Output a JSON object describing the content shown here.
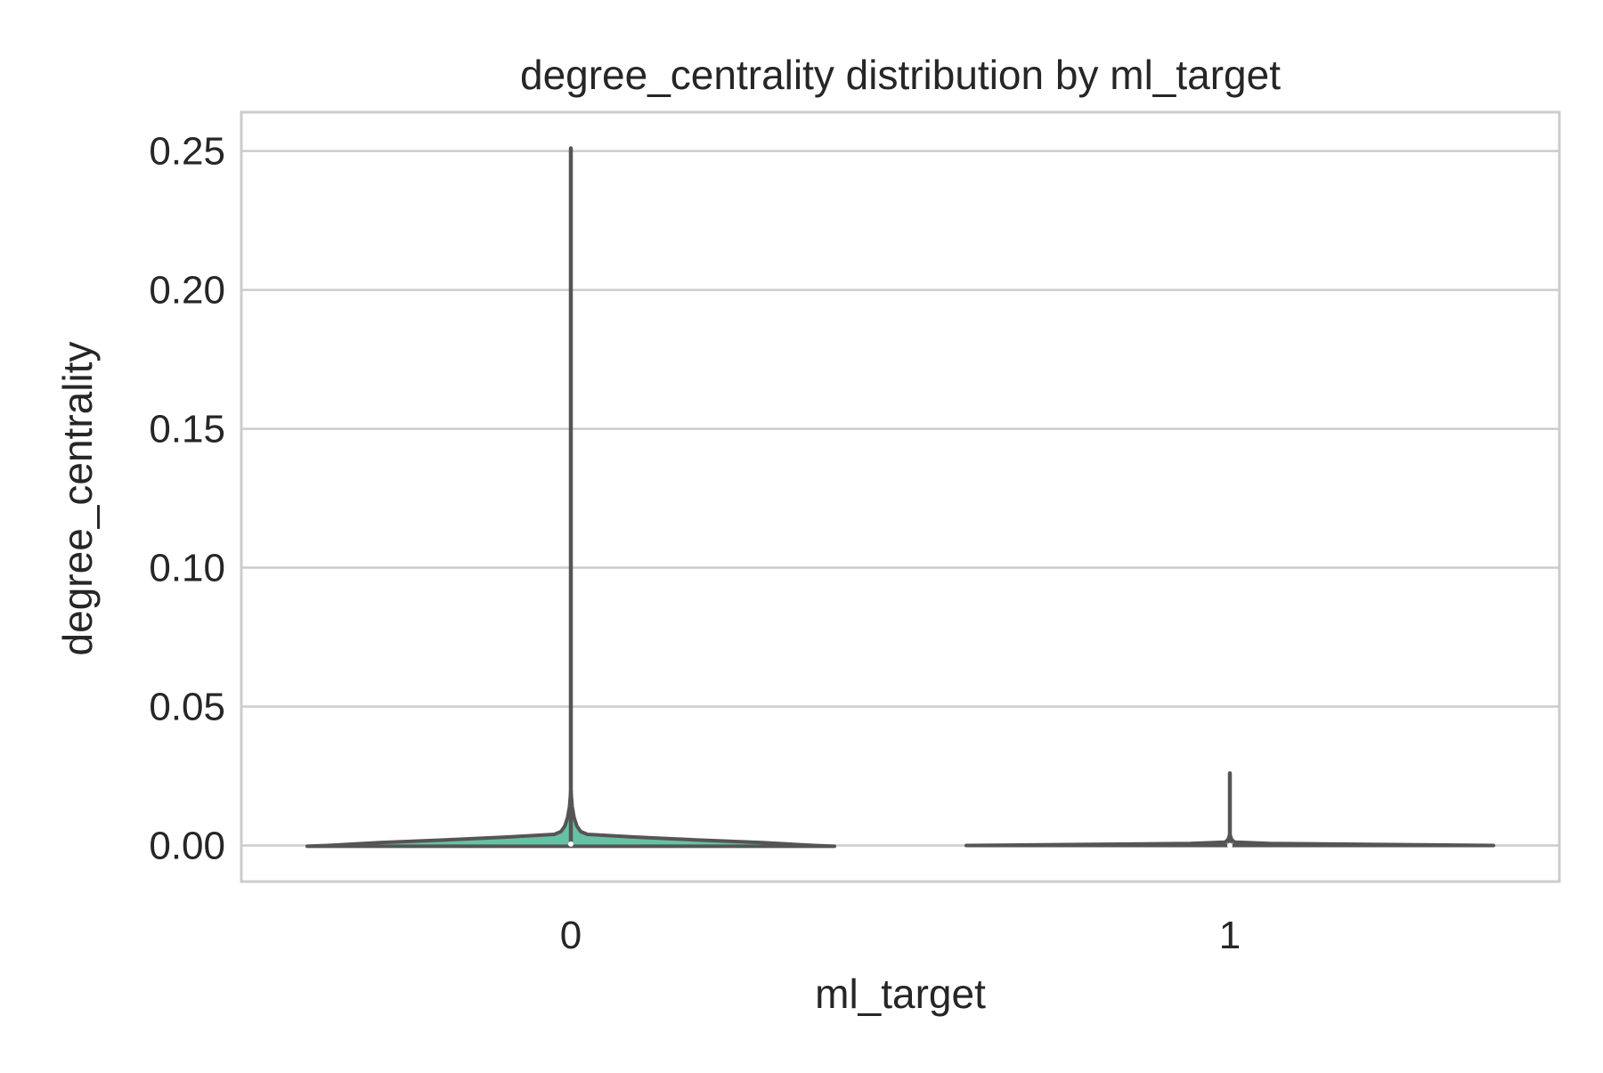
{
  "chart_data": {
    "type": "violin",
    "title": "degree_centrality distribution by ml_target",
    "xlabel": "ml_target",
    "ylabel": "degree_centrality",
    "categories": [
      "0",
      "1"
    ],
    "ylim": [
      -0.013,
      0.264
    ],
    "yticks": [
      0.0,
      0.05,
      0.1,
      0.15,
      0.2,
      0.25
    ],
    "ytick_labels": [
      "0.00",
      "0.05",
      "0.10",
      "0.15",
      "0.20",
      "0.25"
    ],
    "grid": "horizontal",
    "colors": {
      "violin_fill_0": "#66c2a5",
      "violin_fill_1": "#fc8d62",
      "outline": "#555555",
      "grid": "#cccccc",
      "frame": "#cccccc"
    },
    "series": [
      {
        "category": "0",
        "min": 0.0,
        "max": 0.251,
        "median": 0.0005,
        "profile": [
          {
            "y": -0.0003,
            "w": 0.8
          },
          {
            "y": 0.0,
            "w": 0.74
          },
          {
            "y": 0.001,
            "w": 0.58
          },
          {
            "y": 0.002,
            "w": 0.38
          },
          {
            "y": 0.003,
            "w": 0.2
          },
          {
            "y": 0.004,
            "w": 0.05
          },
          {
            "y": 0.005,
            "w": 0.03
          },
          {
            "y": 0.007,
            "w": 0.018
          },
          {
            "y": 0.01,
            "w": 0.01
          },
          {
            "y": 0.014,
            "w": 0.004
          },
          {
            "y": 0.02,
            "w": 0.0
          }
        ]
      },
      {
        "category": "1",
        "min": 0.0,
        "max": 0.026,
        "median": 0.0,
        "profile": [
          {
            "y": 0.0,
            "w": 0.8
          },
          {
            "y": 0.0003,
            "w": 0.5
          },
          {
            "y": 0.0007,
            "w": 0.12
          },
          {
            "y": 0.0012,
            "w": 0.015
          },
          {
            "y": 0.002,
            "w": 0.006
          },
          {
            "y": 0.004,
            "w": 0.0
          }
        ]
      }
    ]
  }
}
